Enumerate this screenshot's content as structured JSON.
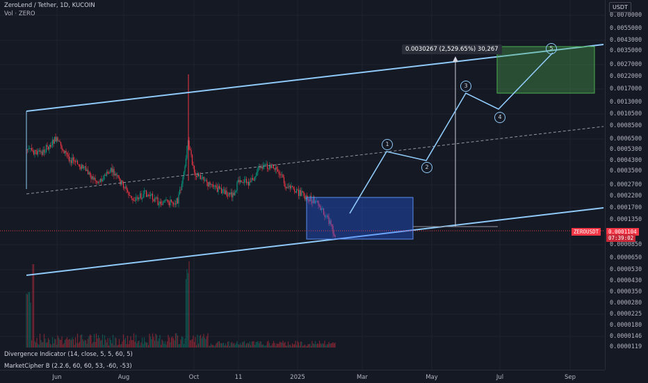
{
  "header": {
    "symbol_line": "ZeroLend / Tether, 1D, KUCOIN",
    "volume_line": "Vol · ZERO"
  },
  "price_axis": {
    "currency": "USDT",
    "ticks": [
      "0.0070000",
      "0.0055000",
      "0.0043000",
      "0.0035000",
      "0.0027000",
      "0.0022000",
      "0.0017000",
      "0.0013000",
      "0.0010500",
      "0.0008500",
      "0.0006500",
      "0.0005300",
      "0.0004300",
      "0.0003500",
      "0.0002700",
      "0.0002200",
      "0.0001700",
      "0.0001350",
      "0.0000850",
      "0.0000650",
      "0.0000530",
      "0.0000430",
      "0.0000350",
      "0.0000280",
      "0.0000225",
      "0.0000180",
      "0.0000146",
      "0.0000119"
    ],
    "current_label": "ZEROUSDT",
    "current_price": "0.0001104",
    "countdown": "07:39:02",
    "colors": {
      "up": "#089981",
      "down": "#f23645",
      "channel": "#90caf9"
    }
  },
  "time_axis": {
    "labels": [
      "Jun",
      "Aug",
      "Oct",
      "11",
      "2025",
      "Mar",
      "May",
      "Jul",
      "Sep"
    ]
  },
  "measure_label": "0.0030267 (2,529.65%) 30,267",
  "wave_labels": [
    "1",
    "2",
    "3",
    "4",
    "5"
  ],
  "indicators": [
    "Divergence Indicator (14, close, 5, 5, 60, 5)",
    "MarketCipher B (2.2.6, 60, 60, 53, -60, -53)"
  ]
}
